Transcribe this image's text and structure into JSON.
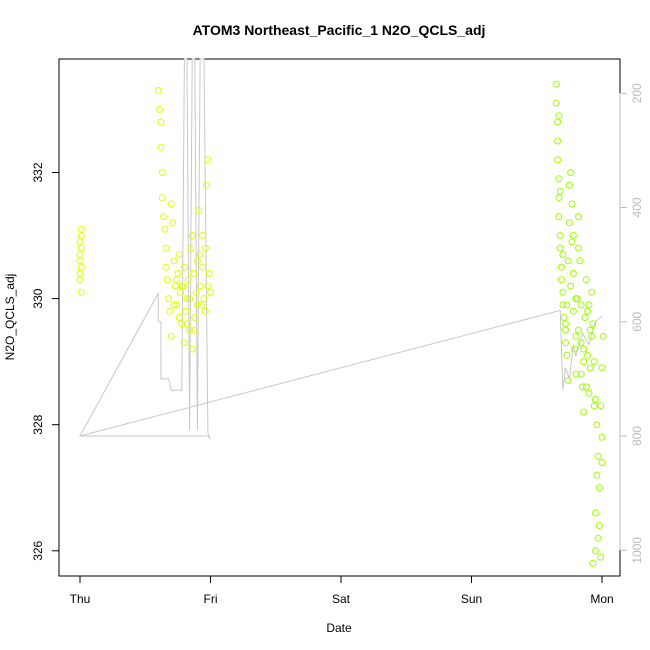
{
  "chart_data": {
    "type": "scatter",
    "title": "ATOM3 Northeast_Pacific_1 N2O_QCLS_adj",
    "xlabel": "Date",
    "ylabel": "N2O_QCLS_adj",
    "x_ticks": [
      "Thu",
      "Fri",
      "Sat",
      "Sun",
      "Mon"
    ],
    "x_range_days": [
      -0.02,
      4.15
    ],
    "ylim": [
      325.6,
      333.8
    ],
    "y_ticks": [
      326,
      328,
      330,
      332
    ],
    "y2_ticks": [
      200,
      400,
      600,
      800,
      1000
    ],
    "y2lim": [
      1045,
      140
    ],
    "colors": {
      "points_early": "#e0ff00",
      "points_late": "#9cff00",
      "pressure_line": "#c8c8c8",
      "axis": "#000000",
      "right_axis": "#bbbbbb"
    },
    "series": [
      {
        "x_day": [
          0.0,
          0.01,
          0.01,
          0.0,
          0.01,
          0.0,
          0.01,
          0.0,
          0.01,
          0.0,
          0.6,
          0.61,
          0.62,
          0.62,
          0.63,
          0.63,
          0.64,
          0.65,
          0.66,
          0.66,
          0.67,
          0.68,
          0.69,
          0.7,
          0.71,
          0.72,
          0.73,
          0.74,
          0.75,
          0.76,
          0.77,
          0.78,
          0.79,
          0.8,
          0.81,
          0.82,
          0.83,
          0.84,
          0.85,
          0.86,
          0.87,
          0.88,
          0.89,
          0.9,
          0.91,
          0.92,
          0.93,
          0.94,
          0.95,
          0.96,
          0.97,
          0.98,
          0.99,
          1.0,
          0.7,
          0.72,
          0.74,
          0.76,
          0.78,
          0.8,
          0.82,
          0.84,
          0.86,
          0.88,
          0.9,
          0.92,
          0.94,
          0.96,
          0.98
        ],
        "y": [
          330.6,
          331.1,
          330.8,
          330.3,
          330.5,
          330.9,
          330.1,
          330.7,
          331.0,
          330.4,
          333.3,
          333.0,
          332.8,
          332.4,
          332.0,
          331.6,
          331.3,
          331.1,
          330.8,
          330.5,
          330.3,
          330.0,
          329.8,
          331.5,
          331.2,
          330.6,
          330.2,
          329.9,
          330.4,
          330.7,
          330.1,
          329.6,
          330.2,
          330.5,
          329.8,
          330.0,
          330.3,
          329.5,
          330.8,
          331.0,
          330.4,
          329.7,
          330.1,
          330.6,
          331.4,
          330.2,
          329.9,
          330.5,
          330.0,
          330.8,
          331.8,
          332.2,
          330.4,
          330.1,
          329.4,
          329.9,
          330.3,
          329.7,
          330.2,
          329.3,
          329.6,
          330.0,
          329.2,
          329.5,
          329.9,
          330.7,
          331.0,
          329.8,
          330.2
        ],
        "color": "#e0ff00"
      },
      {
        "x_day": [
          3.65,
          3.65,
          3.66,
          3.66,
          3.66,
          3.67,
          3.67,
          3.67,
          3.68,
          3.68,
          3.69,
          3.69,
          3.7,
          3.7,
          3.71,
          3.72,
          3.72,
          3.73,
          3.73,
          3.74,
          3.75,
          3.75,
          3.76,
          3.77,
          3.77,
          3.78,
          3.78,
          3.79,
          3.8,
          3.8,
          3.81,
          3.82,
          3.82,
          3.83,
          3.84,
          3.84,
          3.85,
          3.86,
          3.86,
          3.87,
          3.88,
          3.89,
          3.89,
          3.9,
          3.91,
          3.91,
          3.92,
          3.93,
          3.94,
          3.95,
          3.96,
          3.97,
          3.98,
          3.99,
          4.0,
          4.01,
          3.95,
          3.97,
          3.99,
          4.0,
          3.67,
          3.68,
          3.7,
          3.72,
          3.74,
          3.76,
          3.78,
          3.8,
          3.82,
          3.84,
          3.86,
          3.88,
          3.9,
          3.92,
          3.94,
          3.96,
          3.98,
          4.0,
          3.93,
          3.95
        ],
        "y": [
          333.4,
          333.1,
          332.8,
          332.5,
          332.2,
          331.9,
          331.6,
          331.3,
          331.0,
          330.8,
          330.5,
          330.3,
          330.1,
          329.9,
          329.7,
          329.5,
          329.3,
          329.1,
          329.9,
          330.6,
          331.2,
          331.8,
          332.0,
          331.5,
          330.9,
          330.4,
          329.8,
          329.2,
          328.8,
          329.4,
          330.0,
          330.8,
          331.3,
          330.6,
          329.9,
          329.3,
          328.6,
          328.2,
          329.0,
          329.7,
          330.3,
          329.8,
          329.1,
          328.5,
          328.9,
          329.5,
          330.1,
          329.6,
          329.0,
          328.4,
          328.0,
          327.5,
          327.0,
          328.3,
          328.9,
          329.4,
          326.6,
          326.2,
          325.9,
          327.8,
          332.9,
          331.7,
          330.7,
          329.6,
          328.7,
          330.2,
          331.0,
          330.0,
          329.5,
          328.8,
          329.2,
          328.6,
          329.9,
          329.4,
          328.3,
          327.2,
          326.4,
          327.4,
          325.8,
          326.0
        ],
        "color": "#9cff00"
      }
    ],
    "secondary_line": {
      "name": "",
      "x_day": [
        0.0,
        0.98,
        1.0,
        0.98,
        0.95,
        0.92,
        0.9,
        0.88,
        0.86,
        0.84,
        0.82,
        0.8,
        0.78,
        0.76,
        0.74,
        0.72,
        0.7,
        0.68,
        0.66,
        0.64,
        0.62,
        0.62,
        0.6,
        0.6,
        0.0,
        3.68,
        3.69,
        3.7,
        3.72,
        3.75,
        3.78,
        3.8,
        3.85,
        3.9,
        3.95,
        4.0
      ],
      "y2": [
        800,
        800,
        805,
        795,
        140,
        140,
        790,
        140,
        140,
        790,
        140,
        140,
        720,
        720,
        720,
        720,
        720,
        700,
        700,
        700,
        700,
        600,
        600,
        550,
        800,
        580,
        650,
        720,
        680,
        700,
        640,
        660,
        620,
        640,
        600,
        590
      ]
    }
  }
}
